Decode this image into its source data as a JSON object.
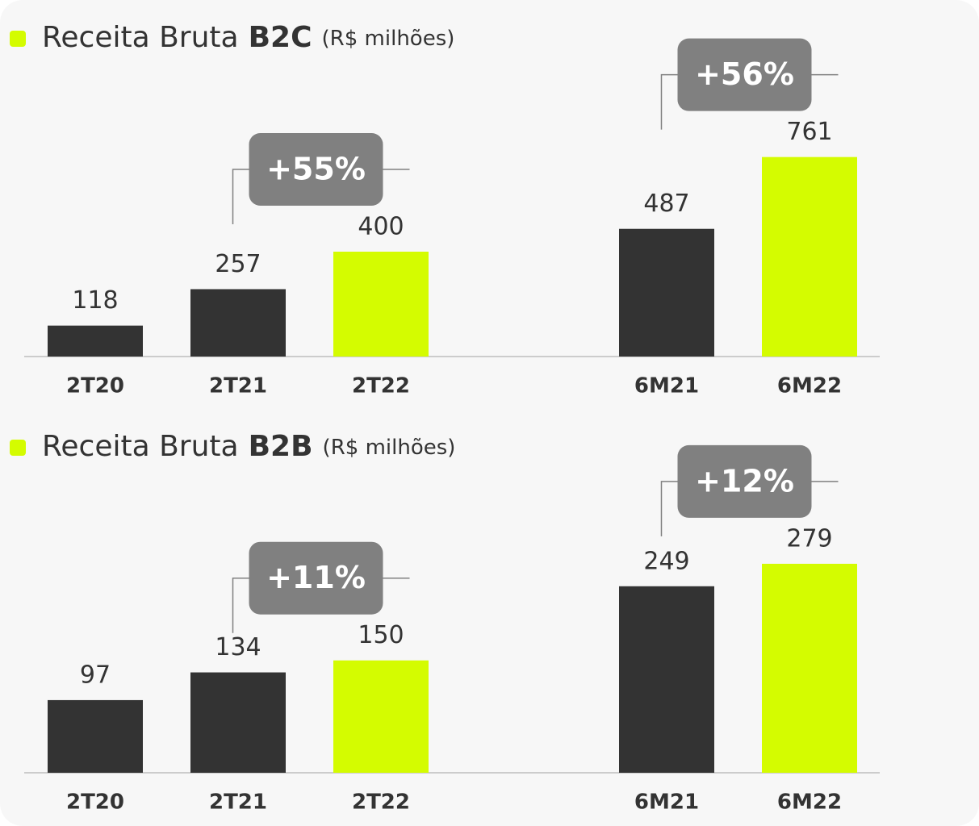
{
  "chart_data": [
    {
      "type": "bar",
      "title": "Receita Bruta",
      "title_bold": "B2C",
      "unit": "(R$ milhões)",
      "categories": [
        "2T20",
        "2T21",
        "2T22",
        null,
        "6M21",
        "6M22"
      ],
      "values": [
        118,
        257,
        400,
        null,
        487,
        761
      ],
      "colors": [
        "#333333",
        "#333333",
        "#d4fc00",
        null,
        "#333333",
        "#d4fc00"
      ],
      "ylim": [
        0,
        1000
      ],
      "annotations": [
        {
          "label": "+55%",
          "categories": [
            "2T21",
            "2T22"
          ]
        },
        {
          "label": "+56%",
          "categories": [
            "6M21",
            "6M22"
          ]
        }
      ]
    },
    {
      "type": "bar",
      "title": "Receita Bruta",
      "title_bold": "B2B",
      "unit": "(R$ milhões)",
      "categories": [
        "2T20",
        "2T21",
        "2T22",
        null,
        "6M21",
        "6M22"
      ],
      "values": [
        97,
        134,
        150,
        null,
        249,
        279
      ],
      "colors": [
        "#333333",
        "#333333",
        "#d4fc00",
        null,
        "#333333",
        "#d4fc00"
      ],
      "ylim": [
        0,
        350
      ],
      "annotations": [
        {
          "label": "+11%",
          "categories": [
            "2T21",
            "2T22"
          ]
        },
        {
          "label": "+12%",
          "categories": [
            "6M21",
            "6M22"
          ]
        }
      ]
    }
  ]
}
